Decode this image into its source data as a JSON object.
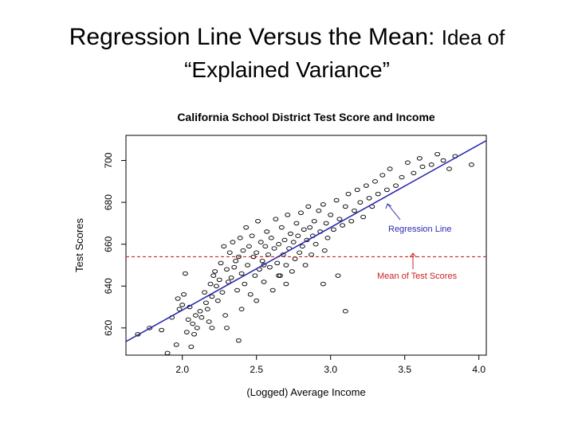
{
  "slide": {
    "title_main": "Regression Line Versus the Mean:",
    "title_small": "Idea of",
    "title_line2": "“Explained Variance”"
  },
  "chart_data": {
    "type": "scatter",
    "title": "California  School District Test Score and Income",
    "xlabel": "(Logged) Average Income",
    "ylabel": "Test Scores",
    "xlim": [
      1.62,
      4.05
    ],
    "ylim": [
      607,
      712
    ],
    "xticks": [
      2.0,
      2.5,
      3.0,
      3.5,
      4.0
    ],
    "xtick_labels": [
      "2.0",
      "2.5",
      "3.0",
      "3.5",
      "4.0"
    ],
    "yticks": [
      620,
      640,
      660,
      680,
      700
    ],
    "ytick_labels": [
      "620",
      "640",
      "660",
      "680",
      "700"
    ],
    "grid": false,
    "regression_line": {
      "x": [
        1.62,
        4.05
      ],
      "y": [
        613.5,
        709.5
      ],
      "color": "#2b2bb0"
    },
    "mean_line": {
      "y": 654,
      "color": "#cc2222"
    },
    "annotations": [
      {
        "text": "Regression Line",
        "color": "#2b2bb0"
      },
      {
        "text": "Mean of Test Scores",
        "color": "#cc2222"
      }
    ],
    "points": [
      [
        1.7,
        617
      ],
      [
        1.78,
        620
      ],
      [
        1.86,
        619
      ],
      [
        1.9,
        608
      ],
      [
        1.93,
        625
      ],
      [
        1.97,
        634
      ],
      [
        1.98,
        629
      ],
      [
        2.0,
        631
      ],
      [
        2.01,
        636
      ],
      [
        2.02,
        646
      ],
      [
        2.03,
        618
      ],
      [
        2.04,
        624
      ],
      [
        2.05,
        630
      ],
      [
        2.06,
        611
      ],
      [
        2.07,
        622
      ],
      [
        2.08,
        617
      ],
      [
        2.09,
        626
      ],
      [
        2.1,
        620
      ],
      [
        2.12,
        628
      ],
      [
        2.13,
        625
      ],
      [
        2.15,
        637
      ],
      [
        2.16,
        632
      ],
      [
        2.17,
        629
      ],
      [
        2.18,
        623
      ],
      [
        2.19,
        641
      ],
      [
        2.2,
        620
      ],
      [
        2.21,
        645
      ],
      [
        2.22,
        647
      ],
      [
        2.23,
        640
      ],
      [
        2.24,
        633
      ],
      [
        2.25,
        643
      ],
      [
        2.26,
        651
      ],
      [
        2.27,
        637
      ],
      [
        2.28,
        659
      ],
      [
        2.29,
        626
      ],
      [
        2.3,
        648
      ],
      [
        2.31,
        642
      ],
      [
        2.32,
        656
      ],
      [
        2.33,
        644
      ],
      [
        2.34,
        661
      ],
      [
        2.35,
        649
      ],
      [
        2.36,
        652
      ],
      [
        2.37,
        638
      ],
      [
        2.38,
        654
      ],
      [
        2.39,
        663
      ],
      [
        2.4,
        646
      ],
      [
        2.41,
        657
      ],
      [
        2.42,
        641
      ],
      [
        2.43,
        668
      ],
      [
        2.44,
        650
      ],
      [
        2.45,
        659
      ],
      [
        2.46,
        636
      ],
      [
        2.47,
        664
      ],
      [
        2.48,
        654
      ],
      [
        2.49,
        645
      ],
      [
        2.5,
        656
      ],
      [
        2.51,
        671
      ],
      [
        2.52,
        648
      ],
      [
        2.53,
        661
      ],
      [
        2.54,
        652
      ],
      [
        2.55,
        642
      ],
      [
        2.56,
        659
      ],
      [
        2.57,
        666
      ],
      [
        2.58,
        655
      ],
      [
        2.59,
        649
      ],
      [
        2.6,
        663
      ],
      [
        2.61,
        638
      ],
      [
        2.62,
        658
      ],
      [
        2.63,
        672
      ],
      [
        2.64,
        651
      ],
      [
        2.65,
        660
      ],
      [
        2.66,
        645
      ],
      [
        2.67,
        668
      ],
      [
        2.68,
        655
      ],
      [
        2.69,
        662
      ],
      [
        2.7,
        650
      ],
      [
        2.71,
        674
      ],
      [
        2.72,
        658
      ],
      [
        2.73,
        665
      ],
      [
        2.74,
        647
      ],
      [
        2.75,
        661
      ],
      [
        2.76,
        653
      ],
      [
        2.77,
        670
      ],
      [
        2.78,
        664
      ],
      [
        2.79,
        656
      ],
      [
        2.8,
        675
      ],
      [
        2.81,
        659
      ],
      [
        2.82,
        667
      ],
      [
        2.83,
        650
      ],
      [
        2.84,
        662
      ],
      [
        2.85,
        678
      ],
      [
        2.86,
        668
      ],
      [
        2.87,
        655
      ],
      [
        2.88,
        664
      ],
      [
        2.89,
        671
      ],
      [
        2.9,
        660
      ],
      [
        2.92,
        676
      ],
      [
        2.93,
        666
      ],
      [
        2.95,
        679
      ],
      [
        2.96,
        657
      ],
      [
        2.97,
        670
      ],
      [
        2.98,
        663
      ],
      [
        3.0,
        674
      ],
      [
        3.02,
        667
      ],
      [
        3.04,
        681
      ],
      [
        3.06,
        672
      ],
      [
        3.08,
        669
      ],
      [
        3.1,
        678
      ],
      [
        3.12,
        684
      ],
      [
        3.14,
        671
      ],
      [
        3.16,
        676
      ],
      [
        3.18,
        686
      ],
      [
        3.2,
        680
      ],
      [
        3.22,
        673
      ],
      [
        3.24,
        688
      ],
      [
        3.26,
        682
      ],
      [
        3.28,
        678
      ],
      [
        3.3,
        690
      ],
      [
        3.32,
        684
      ],
      [
        3.35,
        693
      ],
      [
        3.38,
        686
      ],
      [
        3.4,
        696
      ],
      [
        3.44,
        688
      ],
      [
        3.48,
        692
      ],
      [
        3.52,
        699
      ],
      [
        3.56,
        694
      ],
      [
        3.6,
        701
      ],
      [
        3.62,
        697
      ],
      [
        3.68,
        698
      ],
      [
        3.72,
        703
      ],
      [
        3.76,
        700
      ],
      [
        3.8,
        696
      ],
      [
        3.84,
        702
      ],
      [
        3.95,
        698
      ],
      [
        1.96,
        612
      ],
      [
        2.05,
        605
      ],
      [
        2.38,
        614
      ],
      [
        2.55,
        650
      ],
      [
        2.65,
        645
      ],
      [
        2.7,
        641
      ],
      [
        3.1,
        628
      ],
      [
        2.95,
        641
      ],
      [
        3.05,
        645
      ],
      [
        2.5,
        633
      ],
      [
        2.4,
        629
      ],
      [
        2.3,
        620
      ],
      [
        2.2,
        635
      ]
    ]
  }
}
